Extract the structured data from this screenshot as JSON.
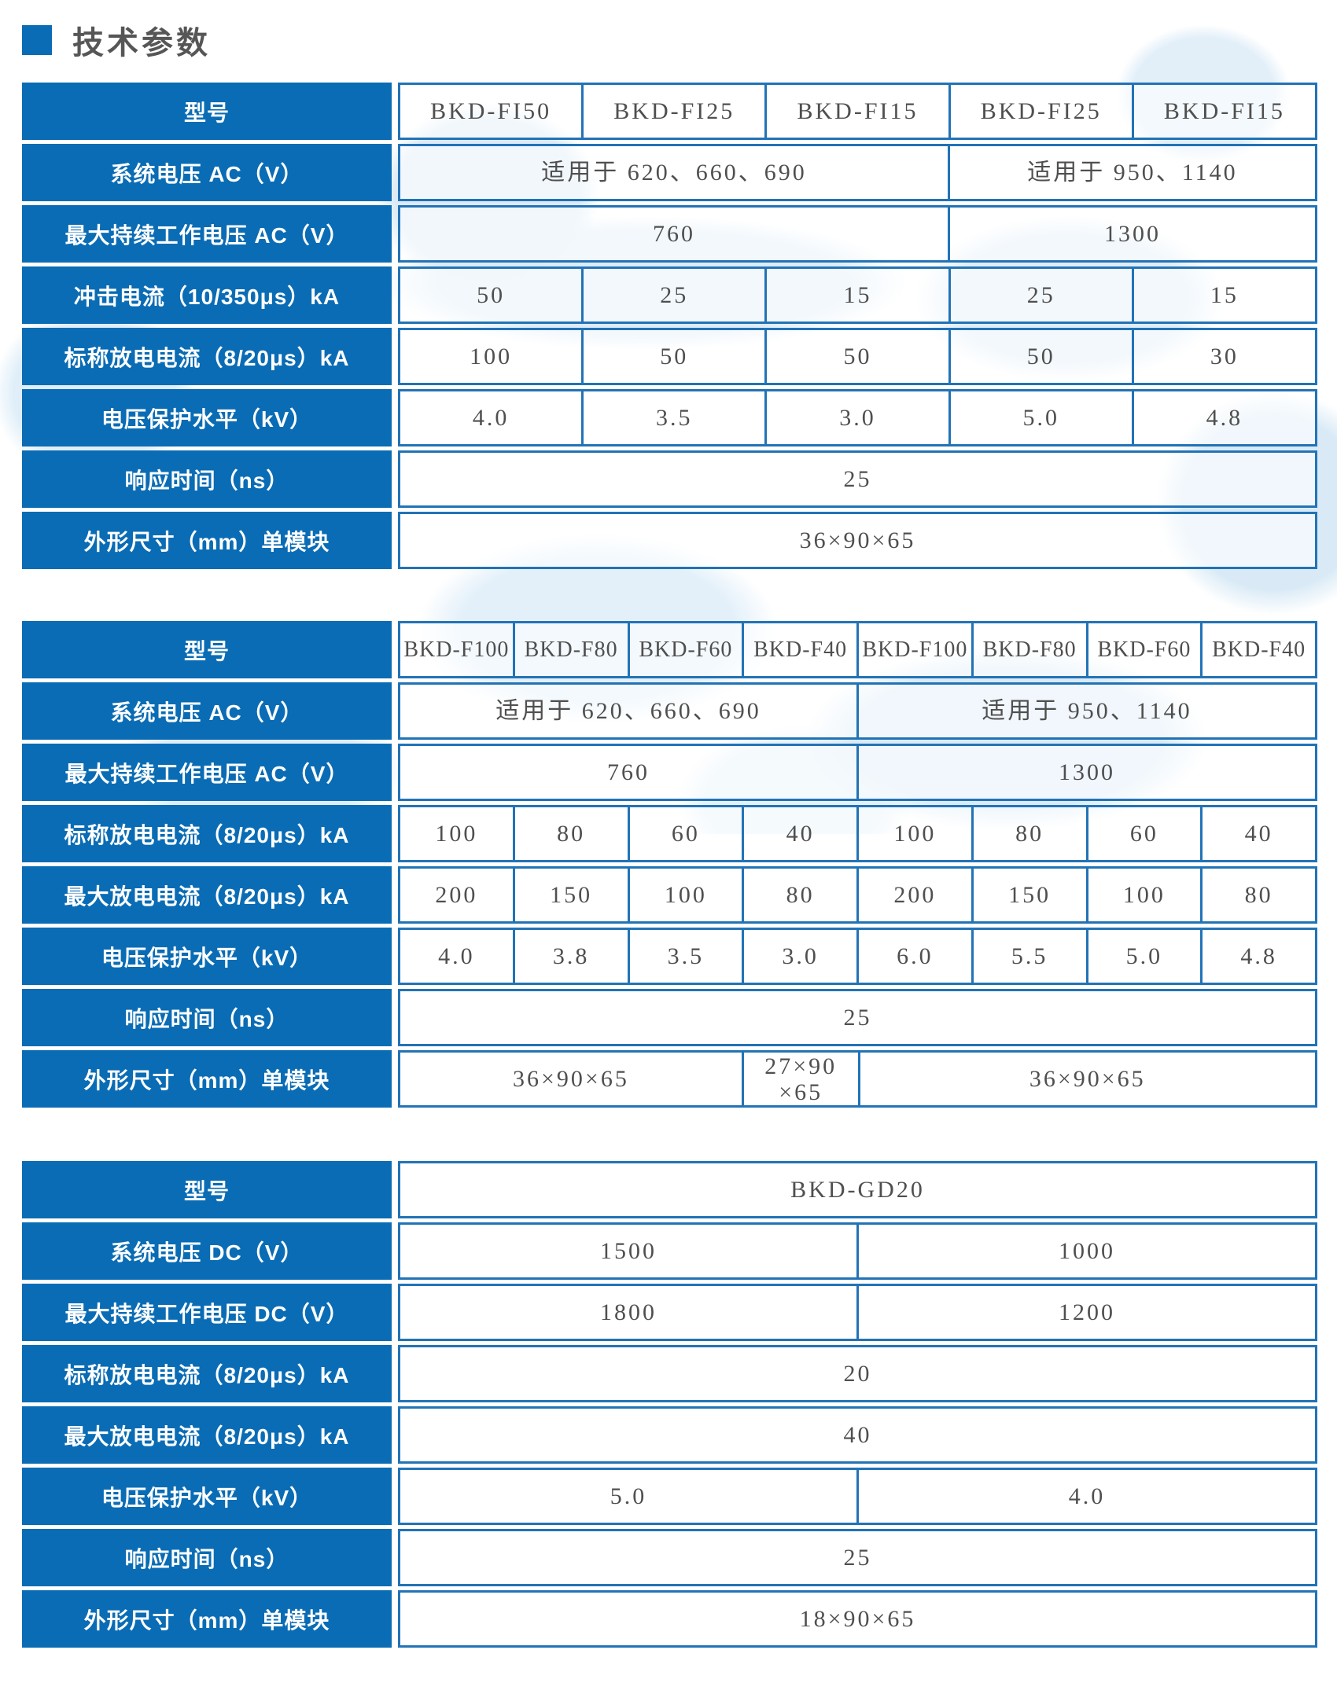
{
  "title": {
    "text": "技术参数"
  },
  "colors": {
    "primary_blue": "#0a6cb4",
    "cell_border_blue": "#2273b6",
    "title_text": "#565656",
    "value_text": "#4f4f4f",
    "watermark_blue": "#ddecf8"
  },
  "tables": [
    {
      "name": "spec-table-fi-series",
      "columns": 5,
      "rows": [
        {
          "label": "型号",
          "cells": [
            {
              "t": "BKD-FI50",
              "s": 1
            },
            {
              "t": "BKD-FI25",
              "s": 1
            },
            {
              "t": "BKD-FI15",
              "s": 1
            },
            {
              "t": "BKD-FI25",
              "s": 1
            },
            {
              "t": "BKD-FI15",
              "s": 1
            }
          ]
        },
        {
          "label": "系统电压 AC（V）",
          "cells": [
            {
              "t": "适用于 620、660、690",
              "s": 3
            },
            {
              "t": "适用于 950、1140",
              "s": 2
            }
          ]
        },
        {
          "label": "最大持续工作电压 AC（V）",
          "cells": [
            {
              "t": "760",
              "s": 3
            },
            {
              "t": "1300",
              "s": 2
            }
          ]
        },
        {
          "label": "冲击电流（10/350μs）kA",
          "cells": [
            {
              "t": "50",
              "s": 1
            },
            {
              "t": "25",
              "s": 1
            },
            {
              "t": "15",
              "s": 1
            },
            {
              "t": "25",
              "s": 1
            },
            {
              "t": "15",
              "s": 1
            }
          ]
        },
        {
          "label": "标称放电电流（8/20μs）kA",
          "cells": [
            {
              "t": "100",
              "s": 1
            },
            {
              "t": "50",
              "s": 1
            },
            {
              "t": "50",
              "s": 1
            },
            {
              "t": "50",
              "s": 1
            },
            {
              "t": "30",
              "s": 1
            }
          ]
        },
        {
          "label": "电压保护水平（kV）",
          "cells": [
            {
              "t": "4.0",
              "s": 1
            },
            {
              "t": "3.5",
              "s": 1
            },
            {
              "t": "3.0",
              "s": 1
            },
            {
              "t": "5.0",
              "s": 1
            },
            {
              "t": "4.8",
              "s": 1
            }
          ]
        },
        {
          "label": "响应时间（ns）",
          "cells": [
            {
              "t": "25",
              "s": 5
            }
          ]
        },
        {
          "label": "外形尺寸（mm）单模块",
          "cells": [
            {
              "t": "36×90×65",
              "s": 5
            }
          ]
        }
      ]
    },
    {
      "name": "spec-table-f-series",
      "columns": 8,
      "rows": [
        {
          "label": "型号",
          "cells": [
            {
              "t": "BKD-F100",
              "s": 1
            },
            {
              "t": "BKD-F80",
              "s": 1
            },
            {
              "t": "BKD-F60",
              "s": 1
            },
            {
              "t": "BKD-F40",
              "s": 1
            },
            {
              "t": "BKD-F100",
              "s": 1
            },
            {
              "t": "BKD-F80",
              "s": 1
            },
            {
              "t": "BKD-F60",
              "s": 1
            },
            {
              "t": "BKD-F40",
              "s": 1
            }
          ]
        },
        {
          "label": "系统电压 AC（V）",
          "cells": [
            {
              "t": "适用于 620、660、690",
              "s": 4
            },
            {
              "t": "适用于 950、1140",
              "s": 4
            }
          ]
        },
        {
          "label": "最大持续工作电压 AC（V）",
          "cells": [
            {
              "t": "760",
              "s": 4
            },
            {
              "t": "1300",
              "s": 4
            }
          ]
        },
        {
          "label": "标称放电电流（8/20μs）kA",
          "cells": [
            {
              "t": "100",
              "s": 1
            },
            {
              "t": "80",
              "s": 1
            },
            {
              "t": "60",
              "s": 1
            },
            {
              "t": "40",
              "s": 1
            },
            {
              "t": "100",
              "s": 1
            },
            {
              "t": "80",
              "s": 1
            },
            {
              "t": "60",
              "s": 1
            },
            {
              "t": "40",
              "s": 1
            }
          ]
        },
        {
          "label": "最大放电电流（8/20μs）kA",
          "cells": [
            {
              "t": "200",
              "s": 1
            },
            {
              "t": "150",
              "s": 1
            },
            {
              "t": "100",
              "s": 1
            },
            {
              "t": "80",
              "s": 1
            },
            {
              "t": "200",
              "s": 1
            },
            {
              "t": "150",
              "s": 1
            },
            {
              "t": "100",
              "s": 1
            },
            {
              "t": "80",
              "s": 1
            }
          ]
        },
        {
          "label": "电压保护水平（kV）",
          "cells": [
            {
              "t": "4.0",
              "s": 1
            },
            {
              "t": "3.8",
              "s": 1
            },
            {
              "t": "3.5",
              "s": 1
            },
            {
              "t": "3.0",
              "s": 1
            },
            {
              "t": "6.0",
              "s": 1
            },
            {
              "t": "5.5",
              "s": 1
            },
            {
              "t": "5.0",
              "s": 1
            },
            {
              "t": "4.8",
              "s": 1
            }
          ]
        },
        {
          "label": "响应时间（ns）",
          "cells": [
            {
              "t": "25",
              "s": 8
            }
          ]
        },
        {
          "label": "外形尺寸（mm）单模块",
          "cells": [
            {
              "t": "36×90×65",
              "s": 3
            },
            {
              "t": "27×90\n×65",
              "s": 1
            },
            {
              "t": "36×90×65",
              "s": 4
            }
          ]
        }
      ]
    },
    {
      "name": "spec-table-gd-series",
      "columns": 2,
      "rows": [
        {
          "label": "型号",
          "cells": [
            {
              "t": "BKD-GD20",
              "s": 2
            }
          ]
        },
        {
          "label": "系统电压 DC（V）",
          "cells": [
            {
              "t": "1500",
              "s": 1
            },
            {
              "t": "1000",
              "s": 1
            }
          ]
        },
        {
          "label": "最大持续工作电压 DC（V）",
          "cells": [
            {
              "t": "1800",
              "s": 1
            },
            {
              "t": "1200",
              "s": 1
            }
          ]
        },
        {
          "label": "标称放电电流（8/20μs）kA",
          "cells": [
            {
              "t": "20",
              "s": 2
            }
          ]
        },
        {
          "label": "最大放电电流（8/20μs）kA",
          "cells": [
            {
              "t": "40",
              "s": 2
            }
          ]
        },
        {
          "label": "电压保护水平（kV）",
          "cells": [
            {
              "t": "5.0",
              "s": 1
            },
            {
              "t": "4.0",
              "s": 1
            }
          ]
        },
        {
          "label": "响应时间（ns）",
          "cells": [
            {
              "t": "25",
              "s": 2
            }
          ]
        },
        {
          "label": "外形尺寸（mm）单模块",
          "cells": [
            {
              "t": "18×90×65",
              "s": 2
            }
          ]
        }
      ]
    }
  ]
}
